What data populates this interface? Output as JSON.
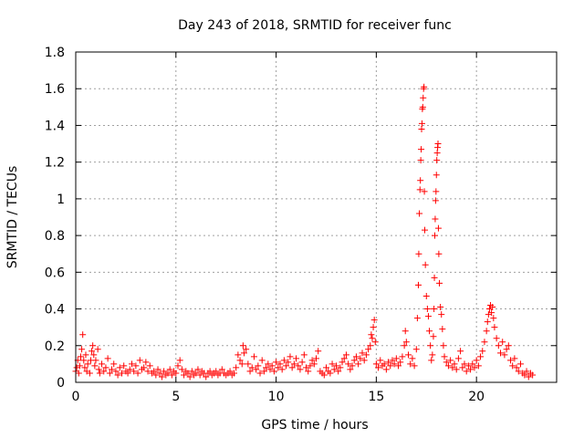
{
  "chart_data": {
    "type": "scatter",
    "title": "Day 243 of 2018, SRMTID for receiver func",
    "xlabel": "GPS time / hours",
    "ylabel": "SRMTID / TECUs",
    "xlim": [
      0,
      24
    ],
    "ylim": [
      0,
      1.8
    ],
    "xticks": [
      0,
      5,
      10,
      15,
      20
    ],
    "yticks": [
      0,
      0.2,
      0.4,
      0.6,
      0.8,
      1,
      1.2,
      1.4,
      1.6,
      1.8
    ],
    "ytick_labels": [
      "0",
      "0.2",
      "0.4",
      "0.6",
      "0.8",
      "1",
      "1.2",
      "1.4",
      "1.6",
      "1.8"
    ],
    "grid": true,
    "marker": "+",
    "colors": {
      "series": "#ff0000",
      "grid": "#a0a0a0",
      "axes": "#000000"
    },
    "series": [
      {
        "name": "SRMTID",
        "points": [
          [
            0.0,
            0.06
          ],
          [
            0.05,
            0.08
          ],
          [
            0.1,
            0.12
          ],
          [
            0.15,
            0.05
          ],
          [
            0.2,
            0.09
          ],
          [
            0.25,
            0.14
          ],
          [
            0.3,
            0.18
          ],
          [
            0.35,
            0.26
          ],
          [
            0.4,
            0.12
          ],
          [
            0.45,
            0.08
          ],
          [
            0.5,
            0.15
          ],
          [
            0.55,
            0.06
          ],
          [
            0.6,
            0.1
          ],
          [
            0.7,
            0.05
          ],
          [
            0.75,
            0.12
          ],
          [
            0.8,
            0.17
          ],
          [
            0.85,
            0.2
          ],
          [
            0.9,
            0.15
          ],
          [
            0.95,
            0.09
          ],
          [
            1.0,
            0.12
          ],
          [
            1.1,
            0.18
          ],
          [
            1.15,
            0.07
          ],
          [
            1.2,
            0.05
          ],
          [
            1.3,
            0.1
          ],
          [
            1.4,
            0.06
          ],
          [
            1.5,
            0.08
          ],
          [
            1.6,
            0.13
          ],
          [
            1.7,
            0.05
          ],
          [
            1.8,
            0.07
          ],
          [
            1.9,
            0.1
          ],
          [
            2.0,
            0.06
          ],
          [
            2.1,
            0.04
          ],
          [
            2.2,
            0.08
          ],
          [
            2.3,
            0.05
          ],
          [
            2.4,
            0.09
          ],
          [
            2.5,
            0.06
          ],
          [
            2.6,
            0.05
          ],
          [
            2.7,
            0.07
          ],
          [
            2.8,
            0.1
          ],
          [
            2.9,
            0.06
          ],
          [
            3.0,
            0.09
          ],
          [
            3.1,
            0.05
          ],
          [
            3.2,
            0.12
          ],
          [
            3.3,
            0.07
          ],
          [
            3.4,
            0.08
          ],
          [
            3.5,
            0.11
          ],
          [
            3.6,
            0.06
          ],
          [
            3.7,
            0.09
          ],
          [
            3.8,
            0.05
          ],
          [
            3.9,
            0.06
          ],
          [
            4.0,
            0.04
          ],
          [
            4.1,
            0.07
          ],
          [
            4.2,
            0.05
          ],
          [
            4.3,
            0.03
          ],
          [
            4.4,
            0.06
          ],
          [
            4.5,
            0.04
          ],
          [
            4.6,
            0.05
          ],
          [
            4.7,
            0.07
          ],
          [
            4.8,
            0.04
          ],
          [
            4.9,
            0.06
          ],
          [
            5.0,
            0.05
          ],
          [
            5.1,
            0.09
          ],
          [
            5.2,
            0.12
          ],
          [
            5.3,
            0.07
          ],
          [
            5.4,
            0.04
          ],
          [
            5.5,
            0.06
          ],
          [
            5.6,
            0.05
          ],
          [
            5.7,
            0.03
          ],
          [
            5.8,
            0.06
          ],
          [
            5.9,
            0.04
          ],
          [
            6.0,
            0.05
          ],
          [
            6.1,
            0.07
          ],
          [
            6.2,
            0.04
          ],
          [
            6.3,
            0.06
          ],
          [
            6.4,
            0.05
          ],
          [
            6.5,
            0.03
          ],
          [
            6.6,
            0.05
          ],
          [
            6.7,
            0.06
          ],
          [
            6.8,
            0.04
          ],
          [
            6.9,
            0.05
          ],
          [
            7.0,
            0.06
          ],
          [
            7.1,
            0.04
          ],
          [
            7.2,
            0.05
          ],
          [
            7.3,
            0.07
          ],
          [
            7.4,
            0.05
          ],
          [
            7.5,
            0.04
          ],
          [
            7.6,
            0.05
          ],
          [
            7.7,
            0.06
          ],
          [
            7.8,
            0.04
          ],
          [
            7.9,
            0.05
          ],
          [
            8.0,
            0.08
          ],
          [
            8.1,
            0.15
          ],
          [
            8.2,
            0.12
          ],
          [
            8.3,
            0.1
          ],
          [
            8.35,
            0.2
          ],
          [
            8.4,
            0.16
          ],
          [
            8.5,
            0.18
          ],
          [
            8.6,
            0.1
          ],
          [
            8.7,
            0.06
          ],
          [
            8.8,
            0.08
          ],
          [
            8.9,
            0.14
          ],
          [
            9.0,
            0.07
          ],
          [
            9.1,
            0.09
          ],
          [
            9.2,
            0.05
          ],
          [
            9.3,
            0.12
          ],
          [
            9.4,
            0.06
          ],
          [
            9.5,
            0.08
          ],
          [
            9.6,
            0.1
          ],
          [
            9.7,
            0.07
          ],
          [
            9.8,
            0.09
          ],
          [
            9.9,
            0.06
          ],
          [
            10.0,
            0.11
          ],
          [
            10.1,
            0.08
          ],
          [
            10.2,
            0.1
          ],
          [
            10.3,
            0.07
          ],
          [
            10.4,
            0.12
          ],
          [
            10.5,
            0.09
          ],
          [
            10.6,
            0.11
          ],
          [
            10.7,
            0.14
          ],
          [
            10.8,
            0.08
          ],
          [
            10.9,
            0.1
          ],
          [
            11.0,
            0.13
          ],
          [
            11.1,
            0.09
          ],
          [
            11.2,
            0.07
          ],
          [
            11.3,
            0.11
          ],
          [
            11.4,
            0.15
          ],
          [
            11.5,
            0.08
          ],
          [
            11.6,
            0.06
          ],
          [
            11.7,
            0.09
          ],
          [
            11.8,
            0.12
          ],
          [
            11.9,
            0.1
          ],
          [
            12.0,
            0.13
          ],
          [
            12.1,
            0.17
          ],
          [
            12.2,
            0.06
          ],
          [
            12.3,
            0.05
          ],
          [
            12.4,
            0.04
          ],
          [
            12.5,
            0.08
          ],
          [
            12.6,
            0.06
          ],
          [
            12.7,
            0.05
          ],
          [
            12.8,
            0.1
          ],
          [
            12.9,
            0.07
          ],
          [
            13.0,
            0.09
          ],
          [
            13.1,
            0.06
          ],
          [
            13.2,
            0.08
          ],
          [
            13.3,
            0.11
          ],
          [
            13.4,
            0.13
          ],
          [
            13.5,
            0.15
          ],
          [
            13.6,
            0.1
          ],
          [
            13.7,
            0.07
          ],
          [
            13.8,
            0.09
          ],
          [
            13.9,
            0.12
          ],
          [
            14.0,
            0.14
          ],
          [
            14.1,
            0.1
          ],
          [
            14.2,
            0.13
          ],
          [
            14.3,
            0.16
          ],
          [
            14.4,
            0.12
          ],
          [
            14.5,
            0.15
          ],
          [
            14.6,
            0.18
          ],
          [
            14.7,
            0.2
          ],
          [
            14.75,
            0.26
          ],
          [
            14.8,
            0.24
          ],
          [
            14.85,
            0.3
          ],
          [
            14.9,
            0.34
          ],
          [
            14.95,
            0.22
          ],
          [
            15.0,
            0.1
          ],
          [
            15.1,
            0.08
          ],
          [
            15.2,
            0.12
          ],
          [
            15.3,
            0.09
          ],
          [
            15.4,
            0.1
          ],
          [
            15.5,
            0.07
          ],
          [
            15.6,
            0.11
          ],
          [
            15.7,
            0.09
          ],
          [
            15.8,
            0.12
          ],
          [
            15.9,
            0.1
          ],
          [
            16.0,
            0.13
          ],
          [
            16.1,
            0.09
          ],
          [
            16.2,
            0.11
          ],
          [
            16.3,
            0.14
          ],
          [
            16.4,
            0.2
          ],
          [
            16.45,
            0.28
          ],
          [
            16.5,
            0.22
          ],
          [
            16.6,
            0.15
          ],
          [
            16.7,
            0.1
          ],
          [
            16.8,
            0.13
          ],
          [
            16.9,
            0.09
          ],
          [
            17.0,
            0.18
          ],
          [
            17.05,
            0.35
          ],
          [
            17.1,
            0.53
          ],
          [
            17.12,
            0.7
          ],
          [
            17.15,
            0.92
          ],
          [
            17.18,
            1.05
          ],
          [
            17.2,
            1.1
          ],
          [
            17.22,
            1.21
          ],
          [
            17.24,
            1.27
          ],
          [
            17.26,
            1.38
          ],
          [
            17.28,
            1.41
          ],
          [
            17.3,
            1.49
          ],
          [
            17.32,
            1.5
          ],
          [
            17.34,
            1.55
          ],
          [
            17.36,
            1.6
          ],
          [
            17.38,
            1.61
          ],
          [
            17.4,
            1.04
          ],
          [
            17.42,
            0.83
          ],
          [
            17.45,
            0.64
          ],
          [
            17.5,
            0.47
          ],
          [
            17.55,
            0.4
          ],
          [
            17.6,
            0.36
          ],
          [
            17.65,
            0.28
          ],
          [
            17.7,
            0.2
          ],
          [
            17.75,
            0.12
          ],
          [
            17.8,
            0.15
          ],
          [
            17.85,
            0.25
          ],
          [
            17.88,
            0.4
          ],
          [
            17.9,
            0.57
          ],
          [
            17.92,
            0.8
          ],
          [
            17.94,
            0.89
          ],
          [
            17.96,
            0.99
          ],
          [
            17.98,
            1.04
          ],
          [
            18.0,
            1.13
          ],
          [
            18.02,
            1.21
          ],
          [
            18.04,
            1.25
          ],
          [
            18.06,
            1.28
          ],
          [
            18.08,
            1.3
          ],
          [
            18.1,
            0.84
          ],
          [
            18.12,
            0.7
          ],
          [
            18.15,
            0.54
          ],
          [
            18.2,
            0.41
          ],
          [
            18.25,
            0.37
          ],
          [
            18.3,
            0.29
          ],
          [
            18.35,
            0.2
          ],
          [
            18.4,
            0.14
          ],
          [
            18.5,
            0.11
          ],
          [
            18.6,
            0.09
          ],
          [
            18.7,
            0.12
          ],
          [
            18.8,
            0.08
          ],
          [
            18.9,
            0.1
          ],
          [
            19.0,
            0.07
          ],
          [
            19.1,
            0.13
          ],
          [
            19.2,
            0.17
          ],
          [
            19.3,
            0.08
          ],
          [
            19.4,
            0.1
          ],
          [
            19.5,
            0.06
          ],
          [
            19.6,
            0.09
          ],
          [
            19.7,
            0.07
          ],
          [
            19.8,
            0.1
          ],
          [
            19.9,
            0.08
          ],
          [
            20.0,
            0.12
          ],
          [
            20.1,
            0.09
          ],
          [
            20.2,
            0.14
          ],
          [
            20.3,
            0.17
          ],
          [
            20.4,
            0.22
          ],
          [
            20.5,
            0.28
          ],
          [
            20.55,
            0.33
          ],
          [
            20.6,
            0.37
          ],
          [
            20.65,
            0.4
          ],
          [
            20.7,
            0.42
          ],
          [
            20.75,
            0.38
          ],
          [
            20.8,
            0.41
          ],
          [
            20.85,
            0.35
          ],
          [
            20.9,
            0.3
          ],
          [
            21.0,
            0.24
          ],
          [
            21.1,
            0.2
          ],
          [
            21.2,
            0.16
          ],
          [
            21.3,
            0.22
          ],
          [
            21.4,
            0.15
          ],
          [
            21.5,
            0.18
          ],
          [
            21.6,
            0.2
          ],
          [
            21.7,
            0.12
          ],
          [
            21.8,
            0.09
          ],
          [
            21.9,
            0.13
          ],
          [
            22.0,
            0.08
          ],
          [
            22.1,
            0.06
          ],
          [
            22.2,
            0.1
          ],
          [
            22.3,
            0.05
          ],
          [
            22.4,
            0.04
          ],
          [
            22.5,
            0.06
          ],
          [
            22.6,
            0.03
          ],
          [
            22.7,
            0.05
          ],
          [
            22.8,
            0.04
          ]
        ]
      }
    ]
  }
}
